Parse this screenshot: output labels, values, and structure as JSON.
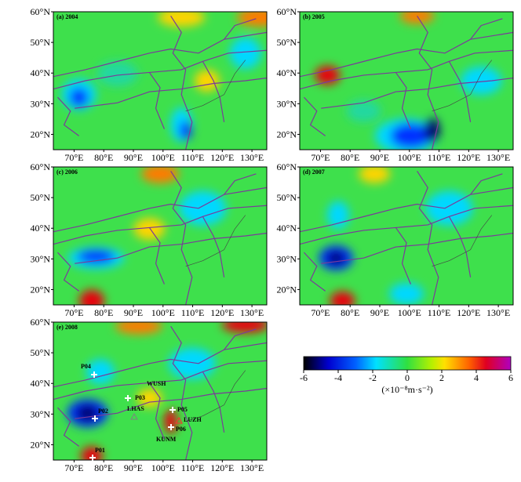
{
  "panels": [
    {
      "label": "(a) 2004"
    },
    {
      "label": "(b) 2005"
    },
    {
      "label": "(c) 2006"
    },
    {
      "label": "(d) 2007"
    },
    {
      "label": "(e) 2008"
    }
  ],
  "axes": {
    "lat_labels": [
      "60°N",
      "50°N",
      "40°N",
      "30°N",
      "20°N"
    ],
    "lon_labels": [
      "70°E",
      "80°E",
      "90°E",
      "100°E",
      "110°E",
      "120°E",
      "130°E"
    ]
  },
  "stations": [
    {
      "label": "P01"
    },
    {
      "label": "P02"
    },
    {
      "label": "P03"
    },
    {
      "label": "P04"
    },
    {
      "label": "P05"
    },
    {
      "label": "P06"
    },
    {
      "label": "WUSH"
    },
    {
      "label": "LHAS"
    },
    {
      "label": "LUZH"
    },
    {
      "label": "KUNM"
    }
  ],
  "colorbar": {
    "ticks": [
      -6,
      -4,
      -2,
      0,
      2,
      4,
      6
    ],
    "unit": "(×10⁻⁸m·s⁻²)"
  }
}
